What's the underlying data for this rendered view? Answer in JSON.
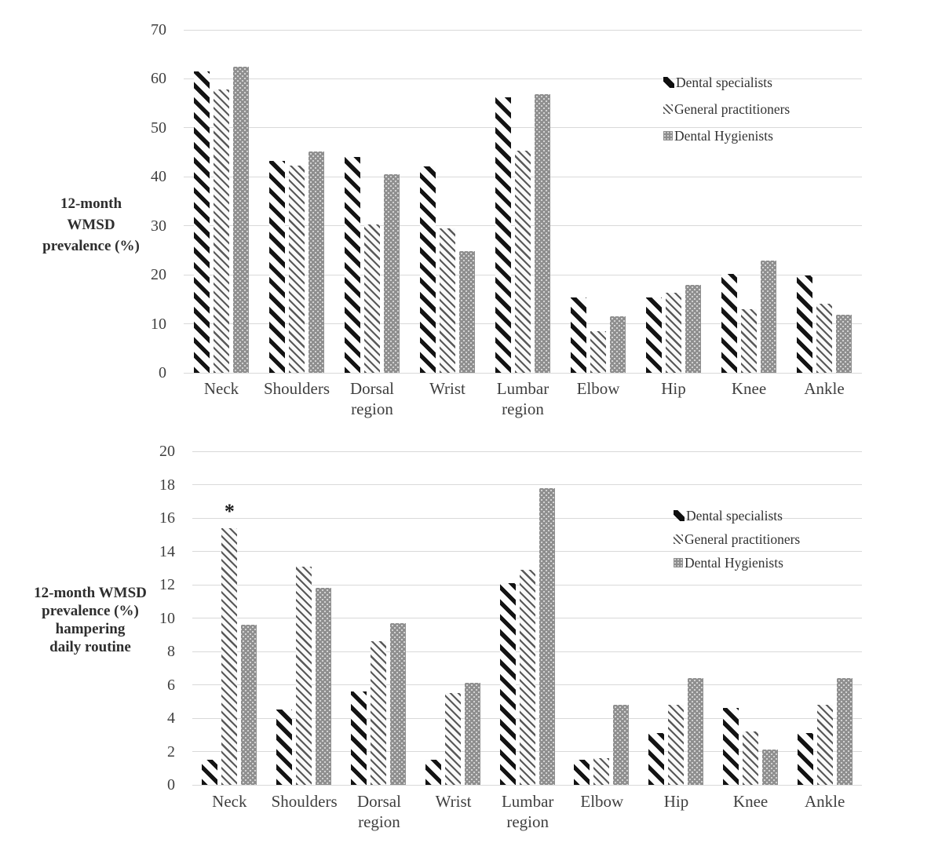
{
  "figure_name": "12-month WMSD prevalence bar charts",
  "colors": {
    "specialists_stripe": "#131313",
    "practitioners_stripe": "#585858",
    "hygienists_fill": "#8e8e8e",
    "gridline": "#d9d9d9",
    "text": "#3f3f3f"
  },
  "chart_data": [
    {
      "type": "bar",
      "title": "",
      "ylabel": "12-month WMSD prevalence (%)",
      "ylabel_lines": [
        "12-month",
        "WMSD",
        "prevalence (%)"
      ],
      "xlabel": "",
      "ylim": [
        0,
        70
      ],
      "ystep": 10,
      "yticks": [
        0,
        10,
        20,
        30,
        40,
        50,
        60,
        70
      ],
      "grid": true,
      "legend_position": "upper-right",
      "categories": [
        "Neck",
        "Shoulders",
        "Dorsal region",
        "Wrist",
        "Lumbar region",
        "Elbow",
        "Hip",
        "Knee",
        "Ankle"
      ],
      "series": [
        {
          "name": "Dental specialists",
          "pattern": "ds",
          "values": [
            61.5,
            43.2,
            44.0,
            42.1,
            56.2,
            15.3,
            15.4,
            20.2,
            19.8
          ]
        },
        {
          "name": "General practitioners",
          "pattern": "gp",
          "values": [
            57.9,
            42.3,
            30.2,
            29.4,
            45.3,
            8.5,
            16.3,
            13.0,
            14.1
          ]
        },
        {
          "name": "Dental Hygienists",
          "pattern": "dh",
          "values": [
            62.5,
            45.2,
            40.5,
            24.8,
            56.8,
            11.5,
            17.9,
            22.9,
            11.9
          ]
        }
      ],
      "annotations": []
    },
    {
      "type": "bar",
      "title": "",
      "ylabel": "12-month WMSD prevalence (%) hampering daily routine",
      "ylabel_lines": [
        "12-month WMSD",
        "prevalence (%)",
        "hampering",
        "daily routine"
      ],
      "xlabel": "",
      "ylim": [
        0,
        20
      ],
      "ystep": 2,
      "yticks": [
        0,
        2,
        4,
        6,
        8,
        10,
        12,
        14,
        16,
        18,
        20
      ],
      "grid": true,
      "legend_position": "right",
      "categories": [
        "Neck",
        "Shoulders",
        "Dorsal region",
        "Wrist",
        "Lumbar region",
        "Elbow",
        "Hip",
        "Knee",
        "Ankle"
      ],
      "series": [
        {
          "name": "Dental specialists",
          "pattern": "ds",
          "values": [
            1.5,
            4.5,
            5.6,
            1.5,
            12.1,
            1.5,
            3.1,
            4.6,
            3.1
          ]
        },
        {
          "name": "General practitioners",
          "pattern": "gp",
          "values": [
            15.4,
            13.1,
            8.6,
            5.5,
            12.9,
            1.6,
            4.8,
            3.2,
            4.8
          ]
        },
        {
          "name": "Dental Hygienists",
          "pattern": "dh",
          "values": [
            9.6,
            11.8,
            9.7,
            6.1,
            17.8,
            4.8,
            6.4,
            2.1,
            6.4
          ]
        }
      ],
      "annotations": [
        {
          "symbol": "*",
          "category": "Neck",
          "category_index": 0,
          "series": "General practitioners",
          "series_index": 1,
          "y": 16.6
        }
      ]
    }
  ]
}
